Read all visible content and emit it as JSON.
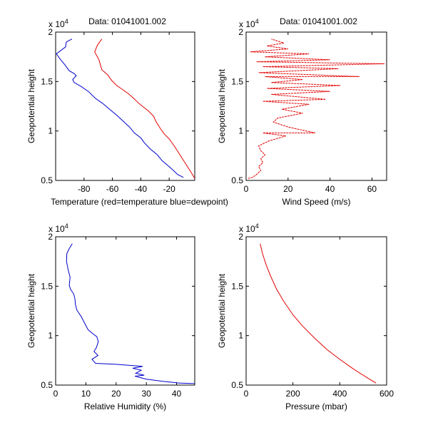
{
  "chart_data": [
    {
      "id": "temp",
      "type": "line",
      "title": "Data: 01041001.002",
      "xlabel": "Temperature (red=temperature blue=dewpoint)",
      "ylabel": "Geopotential height",
      "y_exponent_label": "x 10",
      "y_exponent_power": "4",
      "xlim": [
        -100,
        -2
      ],
      "ylim": [
        0.5,
        2.0
      ],
      "xticks": [
        -80,
        -60,
        -40,
        -20
      ],
      "yticks": [
        0.5,
        1,
        1.5,
        2
      ],
      "ytick_labels": [
        "0.5",
        "1",
        "1.5",
        "2"
      ],
      "series": [
        {
          "name": "temperature",
          "color": "#e00000",
          "points": [
            [
              -67.5,
              1.93
            ],
            [
              -70.5,
              1.87
            ],
            [
              -72.5,
              1.8
            ],
            [
              -69.5,
              1.72
            ],
            [
              -67.5,
              1.62
            ],
            [
              -63.5,
              1.57
            ],
            [
              -60.5,
              1.51
            ],
            [
              -57,
              1.46
            ],
            [
              -53,
              1.42
            ],
            [
              -49,
              1.38
            ],
            [
              -45,
              1.33
            ],
            [
              -41.5,
              1.28
            ],
            [
              -38,
              1.24
            ],
            [
              -34.5,
              1.2
            ],
            [
              -31,
              1.15
            ],
            [
              -29.5,
              1.1
            ],
            [
              -26,
              1.02
            ],
            [
              -23.5,
              0.97
            ],
            [
              -20,
              0.92
            ],
            [
              -16.5,
              0.85
            ],
            [
              -12.5,
              0.76
            ],
            [
              -8.5,
              0.67
            ],
            [
              -4.5,
              0.58
            ],
            [
              -2,
              0.52
            ]
          ]
        },
        {
          "name": "dewpoint",
          "color": "#0000cc",
          "points": [
            [
              -88.5,
              1.93
            ],
            [
              -92.5,
              1.9
            ],
            [
              -93,
              1.85
            ],
            [
              -99.5,
              1.78
            ],
            [
              -97,
              1.73
            ],
            [
              -93.5,
              1.67
            ],
            [
              -90.5,
              1.61
            ],
            [
              -87,
              1.58
            ],
            [
              -85.5,
              1.56
            ],
            [
              -88,
              1.52
            ],
            [
              -87,
              1.49
            ],
            [
              -82,
              1.45
            ],
            [
              -77,
              1.4
            ],
            [
              -72,
              1.33
            ],
            [
              -67,
              1.28
            ],
            [
              -62,
              1.22
            ],
            [
              -57,
              1.16
            ],
            [
              -52.5,
              1.1
            ],
            [
              -48,
              1.04
            ],
            [
              -44.5,
              0.98
            ],
            [
              -40,
              0.93
            ],
            [
              -37.5,
              0.88
            ],
            [
              -33.5,
              0.82
            ],
            [
              -28.5,
              0.76
            ],
            [
              -25,
              0.7
            ],
            [
              -18.5,
              0.62
            ],
            [
              -14,
              0.56
            ],
            [
              -10,
              0.53
            ]
          ]
        }
      ]
    },
    {
      "id": "wind",
      "type": "line",
      "title": "Data: 01041001.002",
      "xlabel": "Wind Speed (m/s)",
      "ylabel": "Geopotential height",
      "y_exponent_label": "x 10",
      "y_exponent_power": "4",
      "xlim": [
        0,
        67
      ],
      "ylim": [
        0.5,
        2.0
      ],
      "xticks": [
        0,
        20,
        40,
        60
      ],
      "yticks": [
        0.5,
        1,
        1.5,
        2
      ],
      "ytick_labels": [
        "0.5",
        "1",
        "1.5",
        "2"
      ],
      "series": [
        {
          "name": "wind speed",
          "color": "#e00000",
          "points": [
            [
              1,
              0.52
            ],
            [
              3,
              0.53
            ],
            [
              5,
              0.56
            ],
            [
              7,
              0.6
            ],
            [
              6,
              0.64
            ],
            [
              8,
              0.68
            ],
            [
              7,
              0.72
            ],
            [
              9,
              0.76
            ],
            [
              7,
              0.8
            ],
            [
              6,
              0.85
            ],
            [
              11,
              0.9
            ],
            [
              19,
              0.95
            ],
            [
              8,
              0.98
            ],
            [
              33,
              0.98
            ],
            [
              20,
              1.04
            ],
            [
              13,
              1.09
            ],
            [
              15,
              1.13
            ],
            [
              27,
              1.18
            ],
            [
              17,
              1.22
            ],
            [
              30,
              1.27
            ],
            [
              8,
              1.3
            ],
            [
              38,
              1.32
            ],
            [
              12,
              1.37
            ],
            [
              40,
              1.4
            ],
            [
              10,
              1.43
            ],
            [
              45,
              1.46
            ],
            [
              12,
              1.49
            ],
            [
              27,
              1.52
            ],
            [
              9,
              1.55
            ],
            [
              54,
              1.55
            ],
            [
              6,
              1.59
            ],
            [
              44,
              1.63
            ],
            [
              8,
              1.65
            ],
            [
              66,
              1.68
            ],
            [
              5,
              1.7
            ],
            [
              40,
              1.72
            ],
            [
              9,
              1.75
            ],
            [
              30,
              1.78
            ],
            [
              2,
              1.8
            ],
            [
              20,
              1.83
            ],
            [
              10,
              1.86
            ],
            [
              18,
              1.89
            ],
            [
              12,
              1.93
            ]
          ]
        }
      ]
    },
    {
      "id": "rh",
      "type": "line",
      "title": "",
      "xlabel": "Relative Humidity (%)",
      "ylabel": "Geopotential height",
      "y_exponent_label": "x 10",
      "y_exponent_power": "4",
      "xlim": [
        0,
        46
      ],
      "ylim": [
        0.5,
        2.0
      ],
      "xticks": [
        0,
        10,
        20,
        30,
        40
      ],
      "yticks": [
        0.5,
        1,
        1.5,
        2
      ],
      "ytick_labels": [
        "0.5",
        "1",
        "1.5",
        "2"
      ],
      "series": [
        {
          "name": "relative humidity",
          "color": "#0000cc",
          "points": [
            [
              5.5,
              1.93
            ],
            [
              4.5,
              1.88
            ],
            [
              3.7,
              1.83
            ],
            [
              3.6,
              1.75
            ],
            [
              4.1,
              1.67
            ],
            [
              4.8,
              1.59
            ],
            [
              4.5,
              1.51
            ],
            [
              4.9,
              1.47
            ],
            [
              6.0,
              1.42
            ],
            [
              6.4,
              1.37
            ],
            [
              6.5,
              1.32
            ],
            [
              7.0,
              1.26
            ],
            [
              8.5,
              1.19
            ],
            [
              9.7,
              1.12
            ],
            [
              10.7,
              1.06
            ],
            [
              12.3,
              1.02
            ],
            [
              13.6,
              0.99
            ],
            [
              14.1,
              0.94
            ],
            [
              13.5,
              0.88
            ],
            [
              12.7,
              0.84
            ],
            [
              14.0,
              0.8
            ],
            [
              12.0,
              0.76
            ],
            [
              13.2,
              0.72
            ],
            [
              20.0,
              0.71
            ],
            [
              28.8,
              0.69
            ],
            [
              25.5,
              0.67
            ],
            [
              28.3,
              0.65
            ],
            [
              26.5,
              0.62
            ],
            [
              29.3,
              0.6
            ],
            [
              26.2,
              0.59
            ],
            [
              30.0,
              0.56
            ],
            [
              35.0,
              0.54
            ],
            [
              41.0,
              0.52
            ],
            [
              46.0,
              0.515
            ]
          ]
        }
      ]
    },
    {
      "id": "pres",
      "type": "line",
      "title": "",
      "xlabel": "Pressure (mbar)",
      "ylabel": "Geopotential height",
      "y_exponent_label": "x 10",
      "y_exponent_power": "4",
      "xlim": [
        0,
        600
      ],
      "ylim": [
        0.5,
        2.0
      ],
      "xticks": [
        0,
        200,
        400,
        600
      ],
      "yticks": [
        0.5,
        1,
        1.5,
        2
      ],
      "ytick_labels": [
        "0.5",
        "1",
        "1.5",
        "2"
      ],
      "series": [
        {
          "name": "pressure",
          "color": "#e00000",
          "points": [
            [
              60,
              1.93
            ],
            [
              70,
              1.83
            ],
            [
              85,
              1.72
            ],
            [
              105,
              1.6
            ],
            [
              130,
              1.47
            ],
            [
              160,
              1.35
            ],
            [
              200,
              1.21
            ],
            [
              240,
              1.1
            ],
            [
              290,
              0.98
            ],
            [
              345,
              0.86
            ],
            [
              400,
              0.76
            ],
            [
              460,
              0.66
            ],
            [
              520,
              0.57
            ],
            [
              555,
              0.52
            ]
          ]
        }
      ]
    }
  ]
}
